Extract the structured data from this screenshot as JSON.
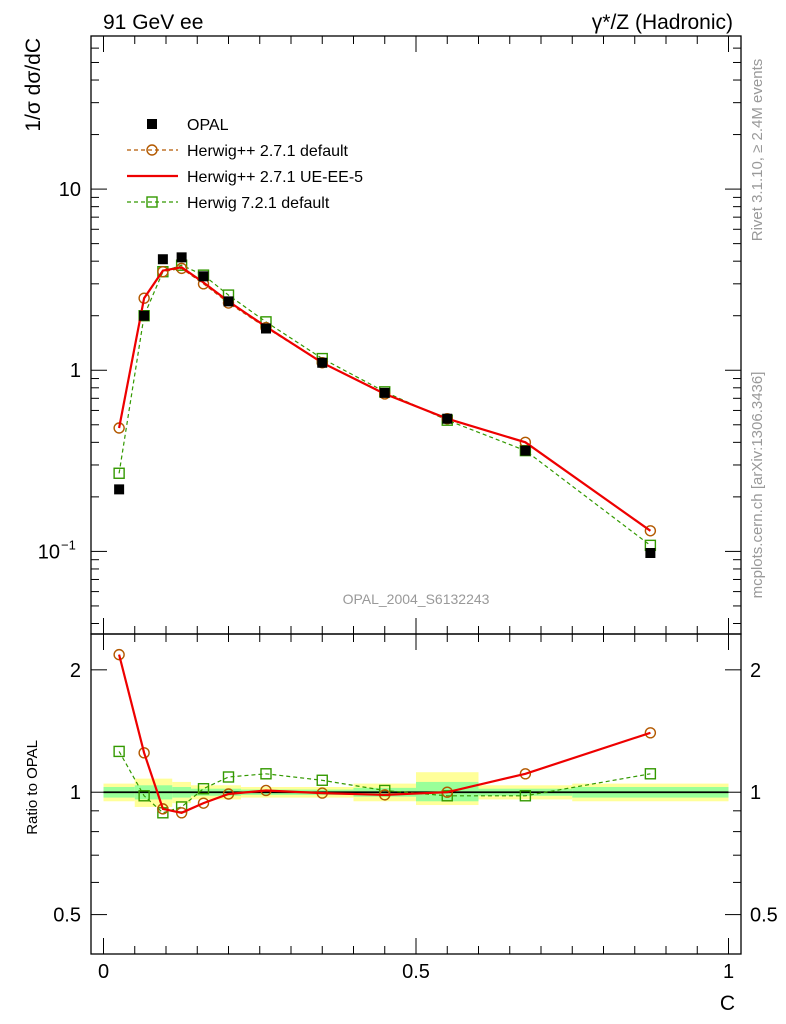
{
  "header": {
    "left": "91 GeV ee",
    "right": "γ*/Z (Hadronic)"
  },
  "side_labels": {
    "rivet": "Rivet 3.1.10, ≥ 2.4M events",
    "mcplots": "mcplots.cern.ch [arXiv:1306.3436]"
  },
  "watermark": "OPAL_2004_S6132243",
  "colors": {
    "data": "#000000",
    "herwigpp_default": "#b35900",
    "herwigpp_ueee5": "#ee0000",
    "herwig7": "#339900",
    "band_stat": "#99ff99",
    "band_total": "#ffff99"
  },
  "chart_data": [
    {
      "type": "line",
      "name": "main",
      "ylabel": "1/σ dσ/dC",
      "yscale": "log",
      "xlim": [
        -0.02,
        1.02
      ],
      "ylim": [
        0.035,
        70
      ],
      "y_ticks": [
        {
          "value": 0.1,
          "label": "10",
          "sup": "−1"
        },
        {
          "value": 1,
          "label": "1",
          "sup": ""
        },
        {
          "value": 10,
          "label": "10",
          "sup": ""
        }
      ],
      "legend": {
        "placement": "top-left",
        "entries": [
          "OPAL",
          "Herwig++ 2.7.1 default",
          "Herwig++ 2.7.1 UE-EE-5",
          "Herwig 7.2.1 default"
        ]
      },
      "series": [
        {
          "name": "OPAL",
          "key": "opal",
          "style": "square-filled",
          "x": [
            0.025,
            0.065,
            0.095,
            0.125,
            0.16,
            0.2,
            0.26,
            0.35,
            0.45,
            0.55,
            0.675,
            0.875
          ],
          "y": [
            0.22,
            2.0,
            4.1,
            4.2,
            3.3,
            2.4,
            1.7,
            1.1,
            0.75,
            0.54,
            0.36,
            0.098
          ]
        },
        {
          "name": "Herwig++ 2.7.1 default",
          "key": "hpp_default",
          "style": "circle-open-dashed",
          "x": [
            0.025,
            0.065,
            0.095,
            0.125,
            0.16,
            0.2,
            0.26,
            0.35,
            0.45,
            0.55,
            0.675,
            0.875
          ],
          "y": [
            0.48,
            2.5,
            3.5,
            3.65,
            3.0,
            2.35,
            1.72,
            1.1,
            0.74,
            0.54,
            0.4,
            0.13
          ]
        },
        {
          "name": "Herwig++ 2.7.1 UE-EE-5",
          "key": "hpp_ueee5",
          "style": "solid",
          "x": [
            0.025,
            0.065,
            0.095,
            0.125,
            0.16,
            0.2,
            0.26,
            0.35,
            0.45,
            0.55,
            0.675,
            0.875
          ],
          "y": [
            0.48,
            2.5,
            3.55,
            3.7,
            3.05,
            2.4,
            1.74,
            1.1,
            0.74,
            0.54,
            0.4,
            0.13
          ]
        },
        {
          "name": "Herwig 7.2.1 default",
          "key": "h7_default",
          "style": "square-open-dashed",
          "x": [
            0.025,
            0.065,
            0.095,
            0.125,
            0.16,
            0.2,
            0.26,
            0.35,
            0.45,
            0.55,
            0.675,
            0.875
          ],
          "y": [
            0.27,
            2.0,
            3.5,
            3.8,
            3.35,
            2.6,
            1.85,
            1.16,
            0.76,
            0.53,
            0.36,
            0.108
          ]
        }
      ]
    },
    {
      "type": "line",
      "name": "ratio",
      "ylabel": "Ratio to OPAL",
      "xlabel": "C",
      "yscale": "log",
      "xlim": [
        -0.02,
        1.02
      ],
      "ylim": [
        0.4,
        2.45
      ],
      "x_ticks": [
        0,
        0.5,
        1
      ],
      "x_tick_labels": [
        "0",
        "0.5",
        "1"
      ],
      "y_ticks": [
        0.5,
        1,
        2
      ],
      "y_tick_labels": [
        "0.5",
        "1",
        "2"
      ],
      "bands": {
        "edges": [
          0,
          0.05,
          0.08,
          0.11,
          0.14,
          0.18,
          0.22,
          0.3,
          0.4,
          0.5,
          0.6,
          0.75,
          1.0
        ],
        "total_lo": [
          0.95,
          0.92,
          0.92,
          0.94,
          0.96,
          0.96,
          0.97,
          0.97,
          0.95,
          0.93,
          0.96,
          0.95
        ],
        "total_hi": [
          1.05,
          1.08,
          1.08,
          1.06,
          1.04,
          1.04,
          1.03,
          1.03,
          1.05,
          1.12,
          1.04,
          1.05
        ],
        "stat_lo": [
          0.97,
          0.96,
          0.96,
          0.97,
          0.98,
          0.98,
          0.985,
          0.985,
          0.975,
          0.95,
          0.98,
          0.97
        ],
        "stat_hi": [
          1.03,
          1.04,
          1.04,
          1.03,
          1.02,
          1.02,
          1.015,
          1.015,
          1.025,
          1.06,
          1.02,
          1.03
        ]
      },
      "series": [
        {
          "name": "Herwig++ 2.7.1 default",
          "key": "hpp_default",
          "style": "circle-open-dashed",
          "x": [
            0.025,
            0.065,
            0.095,
            0.125,
            0.16,
            0.2,
            0.26,
            0.35,
            0.45,
            0.55,
            0.675,
            0.875
          ],
          "y": [
            2.18,
            1.25,
            0.91,
            0.89,
            0.94,
            0.99,
            1.01,
            0.995,
            0.985,
            1.0,
            1.11,
            1.4
          ]
        },
        {
          "name": "Herwig++ 2.7.1 UE-EE-5",
          "key": "hpp_ueee5",
          "style": "solid",
          "x": [
            0.025,
            0.065,
            0.095,
            0.125,
            0.16,
            0.2,
            0.26,
            0.35,
            0.45,
            0.55,
            0.675,
            0.875
          ],
          "y": [
            2.18,
            1.25,
            0.91,
            0.89,
            0.94,
            0.99,
            1.01,
            0.995,
            0.985,
            1.0,
            1.11,
            1.4
          ]
        },
        {
          "name": "Herwig 7.2.1 default",
          "key": "h7_default",
          "style": "square-open-dashed",
          "x": [
            0.025,
            0.065,
            0.095,
            0.125,
            0.16,
            0.2,
            0.26,
            0.35,
            0.45,
            0.55,
            0.675,
            0.875
          ],
          "y": [
            1.26,
            0.98,
            0.89,
            0.92,
            1.02,
            1.09,
            1.11,
            1.07,
            1.01,
            0.98,
            0.98,
            1.11
          ]
        }
      ]
    }
  ]
}
